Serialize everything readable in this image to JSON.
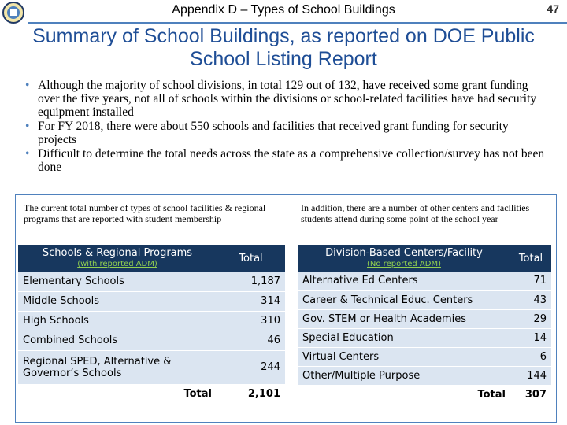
{
  "header": {
    "title": "Appendix D – Types of School Buildings",
    "page": "47"
  },
  "title": "Summary of School Buildings, as reported on DOE Public School Listing Report",
  "bullets": [
    "Although the majority of school divisions, in total 129 out of 132, have received some grant funding over the five years, not all of schools within the divisions or school-related facilities have had security equipment installed",
    "For FY 2018, there were about 550 schools and facilities that received grant funding for security projects",
    "Difficult to determine the total needs across the state as a comprehensive collection/survey has not been done"
  ],
  "left": {
    "intro": "The current total number of types of school facilities & regional programs that are reported with student membership",
    "header": {
      "name": "Schools & Regional Programs",
      "sub": "(with reported ADM)",
      "total": "Total"
    },
    "rows": [
      [
        "Elementary Schools",
        "1,187"
      ],
      [
        "Middle Schools",
        "314"
      ],
      [
        "High Schools",
        "310"
      ],
      [
        "Combined Schools",
        "46"
      ],
      [
        "Regional SPED, Alternative & Governor’s Schools",
        "244"
      ]
    ],
    "total": [
      "Total",
      "2,101"
    ]
  },
  "right": {
    "intro": "In addition, there are a number of other centers and facilities students attend during some point of the school year",
    "header": {
      "name": "Division-Based Centers/Facility",
      "sub": "(No reported ADM)",
      "total": "Total"
    },
    "rows": [
      [
        "Alternative Ed Centers",
        "71"
      ],
      [
        "Career & Technical Educ. Centers",
        "43"
      ],
      [
        "Gov. STEM or Health Academies",
        "29"
      ],
      [
        "Special Education",
        "14"
      ],
      [
        "Virtual Centers",
        "6"
      ],
      [
        "Other/Multiple Purpose",
        "144"
      ]
    ],
    "total": [
      "Total",
      "307"
    ]
  }
}
